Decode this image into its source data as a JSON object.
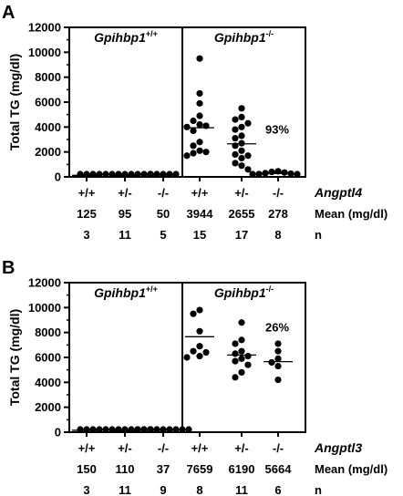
{
  "chart_data": [
    {
      "panel": "A",
      "type": "scatter",
      "ylabel": "Total TG (mg/dl)",
      "ylim": [
        0,
        12000
      ],
      "yticks": [
        0,
        2000,
        4000,
        6000,
        8000,
        10000,
        12000
      ],
      "groups": [
        {
          "base": "Gpihbp1",
          "sup": "+/+"
        },
        {
          "base": "Gpihbp1",
          "sup": "-/-"
        }
      ],
      "gene": "Angptl4",
      "mean_label": "Mean (mg/dl)",
      "n_label": "n",
      "annotation": "93%",
      "categories": [
        {
          "label": "+/+",
          "mean": 125,
          "n": 3,
          "values": [
            110,
            130,
            135
          ]
        },
        {
          "label": "+/-",
          "mean": 95,
          "n": 11,
          "values": [
            60,
            70,
            80,
            85,
            90,
            95,
            100,
            105,
            110,
            120,
            130
          ]
        },
        {
          "label": "-/-",
          "mean": 50,
          "n": 5,
          "values": [
            40,
            45,
            50,
            55,
            60
          ]
        },
        {
          "label": "+/+",
          "mean": 3944,
          "n": 15,
          "values": [
            9500,
            6700,
            5900,
            4900,
            4500,
            4200,
            4100,
            4000,
            3700,
            2800,
            2500,
            2100,
            2000,
            1900,
            1700
          ]
        },
        {
          "label": "+/-",
          "mean": 2655,
          "n": 17,
          "values": [
            5500,
            4800,
            4600,
            4300,
            4000,
            3800,
            3300,
            3100,
            2700,
            2500,
            2100,
            1800,
            1700,
            1500,
            1100,
            900,
            600
          ]
        },
        {
          "label": "-/-",
          "mean": 278,
          "n": 8,
          "values": [
            450,
            400,
            350,
            300,
            260,
            230,
            200,
            180
          ]
        }
      ]
    },
    {
      "panel": "B",
      "type": "scatter",
      "ylabel": "Total TG (mg/dl)",
      "ylim": [
        0,
        12000
      ],
      "yticks": [
        0,
        2000,
        4000,
        6000,
        8000,
        10000,
        12000
      ],
      "groups": [
        {
          "base": "Gpihbp1",
          "sup": "+/+"
        },
        {
          "base": "Gpihbp1",
          "sup": "-/-"
        }
      ],
      "gene": "Angptl3",
      "mean_label": "Mean (mg/dl)",
      "n_label": "n",
      "annotation": "26%",
      "categories": [
        {
          "label": "+/+",
          "mean": 150,
          "n": 3,
          "values": [
            130,
            150,
            170
          ]
        },
        {
          "label": "+/-",
          "mean": 110,
          "n": 11,
          "values": [
            70,
            80,
            90,
            100,
            105,
            110,
            115,
            120,
            130,
            140,
            150
          ]
        },
        {
          "label": "-/-",
          "mean": 37,
          "n": 9,
          "values": [
            20,
            25,
            30,
            35,
            37,
            40,
            45,
            50,
            55
          ]
        },
        {
          "label": "+/+",
          "mean": 7659,
          "n": 8,
          "values": [
            9800,
            9500,
            8100,
            6900,
            6500,
            6400,
            6100,
            6000
          ]
        },
        {
          "label": "+/-",
          "mean": 6190,
          "n": 11,
          "values": [
            8800,
            7400,
            7100,
            6500,
            6300,
            6100,
            5900,
            5700,
            5400,
            4800,
            4400
          ]
        },
        {
          "label": "-/-",
          "mean": 5664,
          "n": 6,
          "values": [
            7100,
            6500,
            5900,
            5600,
            5300,
            4200
          ]
        }
      ]
    }
  ]
}
